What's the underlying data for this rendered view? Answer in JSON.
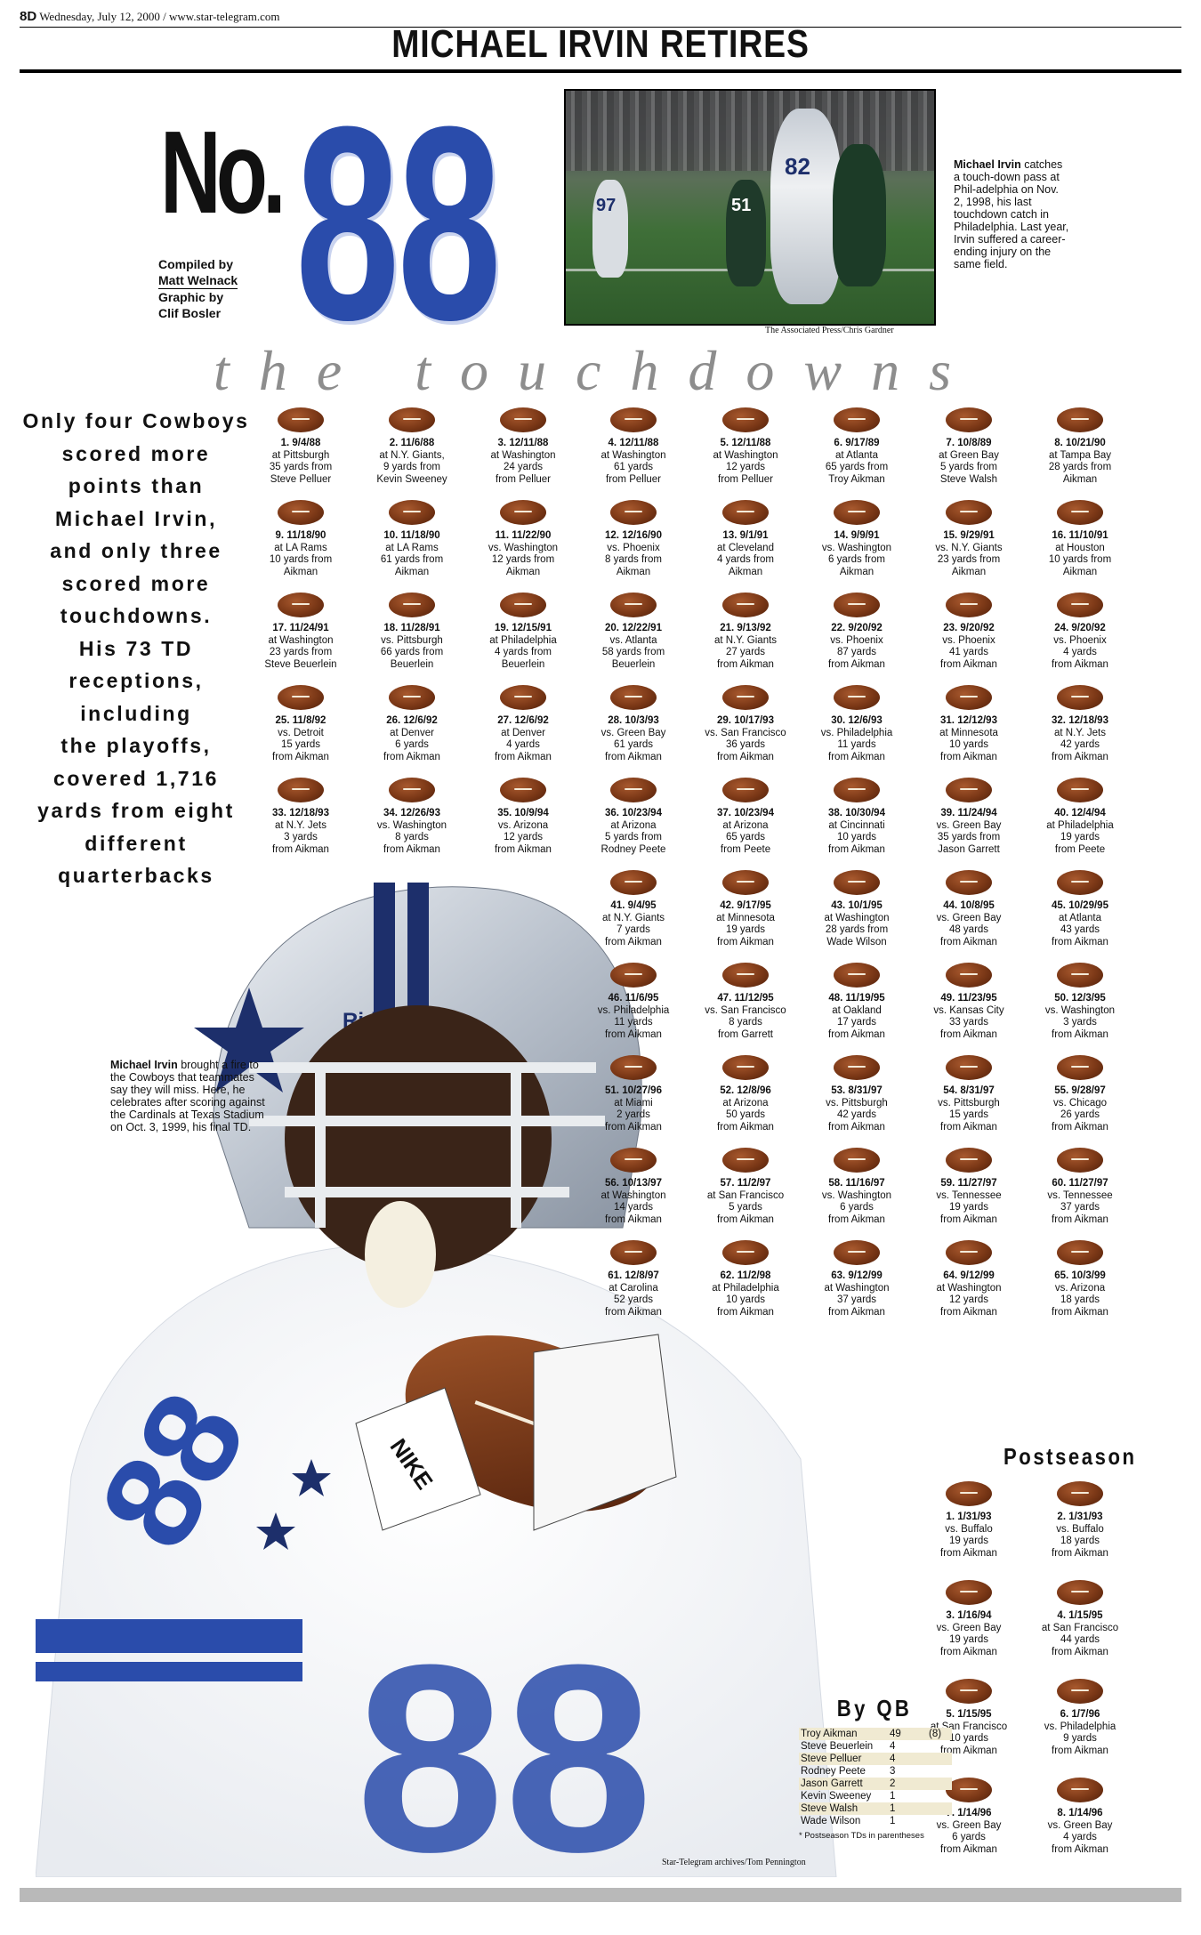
{
  "folio": {
    "page": "8D",
    "line": "Wednesday, July 12, 2000 / www.star-telegram.com"
  },
  "headline": "MICHAEL IRVIN RETIRES",
  "masthead": {
    "no": "No.",
    "number": "88"
  },
  "credits": {
    "line1": "Compiled by",
    "line2": "Matt Welnack",
    "line3": "Graphic by",
    "line4": "Clif Bosler"
  },
  "photo1": {
    "caption_name": "Michael Irvin",
    "caption_text": "catches a touch-down pass at Phil-adelphia on Nov. 2, 1998, his last touchdown catch in Philadelphia. Last year, Irvin suffered a career-ending injury on the same field.",
    "credit": "The Associated Press/Chris Gardner",
    "jerseys": [
      "97",
      "51",
      "82"
    ]
  },
  "section_title": "the touchdowns",
  "intro": [
    "Only four Cowboys",
    "scored more",
    "points than",
    "Michael Irvin,",
    "and only three",
    "scored more",
    "touchdowns.",
    "His 73 TD",
    "receptions,",
    "including",
    "the playoffs,",
    "covered 1,716",
    "yards from eight",
    "different",
    "quarterbacks"
  ],
  "touchdowns": [
    {
      "h": "1. 9/4/88",
      "l": [
        "at Pittsburgh",
        "35 yards from",
        "Steve Pelluer"
      ]
    },
    {
      "h": "2. 11/6/88",
      "l": [
        "at N.Y. Giants,",
        "9 yards from",
        "Kevin Sweeney"
      ]
    },
    {
      "h": "3. 12/11/88",
      "l": [
        "at Washington",
        "24 yards",
        "from Pelluer"
      ]
    },
    {
      "h": "4. 12/11/88",
      "l": [
        "at Washington",
        "61 yards",
        "from Pelluer"
      ]
    },
    {
      "h": "5. 12/11/88",
      "l": [
        "at Washington",
        "12 yards",
        "from Pelluer"
      ]
    },
    {
      "h": "6. 9/17/89",
      "l": [
        "at Atlanta",
        "65 yards from",
        "Troy Aikman"
      ]
    },
    {
      "h": "7. 10/8/89",
      "l": [
        "at Green Bay",
        "5 yards from",
        "Steve Walsh"
      ]
    },
    {
      "h": "8. 10/21/90",
      "l": [
        "at Tampa Bay",
        "28 yards from",
        "Aikman"
      ]
    },
    {
      "h": "9. 11/18/90",
      "l": [
        "at LA Rams",
        "10 yards from",
        "Aikman"
      ]
    },
    {
      "h": "10. 11/18/90",
      "l": [
        "at LA Rams",
        "61 yards from",
        "Aikman"
      ]
    },
    {
      "h": "11. 11/22/90",
      "l": [
        "vs. Washington",
        "12 yards from",
        "Aikman"
      ]
    },
    {
      "h": "12. 12/16/90",
      "l": [
        "vs. Phoenix",
        "8 yards from",
        "Aikman"
      ]
    },
    {
      "h": "13. 9/1/91",
      "l": [
        "at Cleveland",
        "4 yards from",
        "Aikman"
      ]
    },
    {
      "h": "14. 9/9/91",
      "l": [
        "vs. Washington",
        "6 yards from",
        "Aikman"
      ]
    },
    {
      "h": "15. 9/29/91",
      "l": [
        "vs. N.Y. Giants",
        "23 yards from",
        "Aikman"
      ]
    },
    {
      "h": "16. 11/10/91",
      "l": [
        "at Houston",
        "10 yards from",
        "Aikman"
      ]
    },
    {
      "h": "17. 11/24/91",
      "l": [
        "at Washington",
        "23 yards from",
        "Steve Beuerlein"
      ]
    },
    {
      "h": "18. 11/28/91",
      "l": [
        "vs. Pittsburgh",
        "66 yards from",
        "Beuerlein"
      ]
    },
    {
      "h": "19. 12/15/91",
      "l": [
        "at Philadelphia",
        "4 yards from",
        "Beuerlein"
      ]
    },
    {
      "h": "20. 12/22/91",
      "l": [
        "vs. Atlanta",
        "58 yards from",
        "Beuerlein"
      ]
    },
    {
      "h": "21. 9/13/92",
      "l": [
        "at N.Y. Giants",
        "27 yards",
        "from Aikman"
      ]
    },
    {
      "h": "22. 9/20/92",
      "l": [
        "vs. Phoenix",
        "87 yards",
        "from Aikman"
      ]
    },
    {
      "h": "23. 9/20/92",
      "l": [
        "vs. Phoenix",
        "41 yards",
        "from Aikman"
      ]
    },
    {
      "h": "24. 9/20/92",
      "l": [
        "vs. Phoenix",
        "4 yards",
        "from Aikman"
      ]
    },
    {
      "h": "25. 11/8/92",
      "l": [
        "vs. Detroit",
        "15 yards",
        "from Aikman"
      ]
    },
    {
      "h": "26. 12/6/92",
      "l": [
        "at Denver",
        "6 yards",
        "from Aikman"
      ]
    },
    {
      "h": "27. 12/6/92",
      "l": [
        "at Denver",
        "4 yards",
        "from Aikman"
      ]
    },
    {
      "h": "28. 10/3/93",
      "l": [
        "vs. Green Bay",
        "61 yards",
        "from Aikman"
      ]
    },
    {
      "h": "29. 10/17/93",
      "l": [
        "vs. San Francisco",
        "36 yards",
        "from Aikman"
      ]
    },
    {
      "h": "30. 12/6/93",
      "l": [
        "vs. Philadelphia",
        "11 yards",
        "from Aikman"
      ]
    },
    {
      "h": "31. 12/12/93",
      "l": [
        "at Minnesota",
        "10 yards",
        "from Aikman"
      ]
    },
    {
      "h": "32. 12/18/93",
      "l": [
        "at N.Y. Jets",
        "42 yards",
        "from Aikman"
      ]
    },
    {
      "h": "33. 12/18/93",
      "l": [
        "at N.Y. Jets",
        "3 yards",
        "from Aikman"
      ]
    },
    {
      "h": "34. 12/26/93",
      "l": [
        "vs. Washington",
        "8 yards",
        "from Aikman"
      ]
    },
    {
      "h": "35. 10/9/94",
      "l": [
        "vs. Arizona",
        "12 yards",
        "from Aikman"
      ]
    },
    {
      "h": "36. 10/23/94",
      "l": [
        "at Arizona",
        "5 yards from",
        "Rodney Peete"
      ]
    },
    {
      "h": "37. 10/23/94",
      "l": [
        "at Arizona",
        "65 yards",
        "from Peete"
      ]
    },
    {
      "h": "38. 10/30/94",
      "l": [
        "at Cincinnati",
        "10 yards",
        "from Aikman"
      ]
    },
    {
      "h": "39. 11/24/94",
      "l": [
        "vs. Green Bay",
        "35 yards from",
        "Jason Garrett"
      ]
    },
    {
      "h": "40. 12/4/94",
      "l": [
        "at Philadelphia",
        "19 yards",
        "from Peete"
      ]
    },
    {
      "h": "41. 9/4/95",
      "l": [
        "at N.Y. Giants",
        "7 yards",
        "from Aikman"
      ]
    },
    {
      "h": "42. 9/17/95",
      "l": [
        "at Minnesota",
        "19 yards",
        "from Aikman"
      ]
    },
    {
      "h": "43. 10/1/95",
      "l": [
        "at Washington",
        "28 yards from",
        "Wade Wilson"
      ]
    },
    {
      "h": "44. 10/8/95",
      "l": [
        "vs. Green Bay",
        "48 yards",
        "from Aikman"
      ]
    },
    {
      "h": "45. 10/29/95",
      "l": [
        "at Atlanta",
        "43 yards",
        "from Aikman"
      ]
    },
    {
      "h": "46. 11/6/95",
      "l": [
        "vs. Philadelphia",
        "11 yards",
        "from Aikman"
      ]
    },
    {
      "h": "47. 11/12/95",
      "l": [
        "vs. San Francisco",
        "8 yards",
        "from Garrett"
      ]
    },
    {
      "h": "48. 11/19/95",
      "l": [
        "at Oakland",
        "17 yards",
        "from Aikman"
      ]
    },
    {
      "h": "49. 11/23/95",
      "l": [
        "vs. Kansas City",
        "33 yards",
        "from Aikman"
      ]
    },
    {
      "h": "50. 12/3/95",
      "l": [
        "vs. Washington",
        "3 yards",
        "from Aikman"
      ]
    },
    {
      "h": "51. 10/27/96",
      "l": [
        "at Miami",
        "2 yards",
        "from Aikman"
      ]
    },
    {
      "h": "52. 12/8/96",
      "l": [
        "at Arizona",
        "50 yards",
        "from Aikman"
      ]
    },
    {
      "h": "53. 8/31/97",
      "l": [
        "vs. Pittsburgh",
        "42 yards",
        "from Aikman"
      ]
    },
    {
      "h": "54. 8/31/97",
      "l": [
        "vs. Pittsburgh",
        "15 yards",
        "from Aikman"
      ]
    },
    {
      "h": "55. 9/28/97",
      "l": [
        "vs. Chicago",
        "26 yards",
        "from Aikman"
      ]
    },
    {
      "h": "56. 10/13/97",
      "l": [
        "at Washington",
        "14 yards",
        "from Aikman"
      ]
    },
    {
      "h": "57. 11/2/97",
      "l": [
        "at San Francisco",
        "5 yards",
        "from Aikman"
      ]
    },
    {
      "h": "58. 11/16/97",
      "l": [
        "vs. Washington",
        "6 yards",
        "from Aikman"
      ]
    },
    {
      "h": "59. 11/27/97",
      "l": [
        "vs. Tennessee",
        "19 yards",
        "from Aikman"
      ]
    },
    {
      "h": "60. 11/27/97",
      "l": [
        "vs. Tennessee",
        "37 yards",
        "from Aikman"
      ]
    },
    {
      "h": "61. 12/8/97",
      "l": [
        "at Carolina",
        "52 yards",
        "from Aikman"
      ]
    },
    {
      "h": "62. 11/2/98",
      "l": [
        "at Philadelphia",
        "10 yards",
        "from Aikman"
      ]
    },
    {
      "h": "63. 9/12/99",
      "l": [
        "at Washington",
        "37 yards",
        "from Aikman"
      ]
    },
    {
      "h": "64. 9/12/99",
      "l": [
        "at Washington",
        "12 yards",
        "from Aikman"
      ]
    },
    {
      "h": "65. 10/3/99",
      "l": [
        "vs. Arizona",
        "18 yards",
        "from Aikman"
      ]
    }
  ],
  "postseason_title": "Postseason",
  "postseason": [
    {
      "h": "1. 1/31/93",
      "l": [
        "vs. Buffalo",
        "19 yards",
        "from Aikman"
      ]
    },
    {
      "h": "2. 1/31/93",
      "l": [
        "vs. Buffalo",
        "18 yards",
        "from Aikman"
      ]
    },
    {
      "h": "3. 1/16/94",
      "l": [
        "vs. Green Bay",
        "19 yards",
        "from Aikman"
      ]
    },
    {
      "h": "4. 1/15/95",
      "l": [
        "at San Francisco",
        "44 yards",
        "from Aikman"
      ]
    },
    {
      "h": "5. 1/15/95",
      "l": [
        "at San Francisco",
        "10 yards",
        "from Aikman"
      ]
    },
    {
      "h": "6. 1/7/96",
      "l": [
        "vs. Philadelphia",
        "9 yards",
        "from Aikman"
      ]
    },
    {
      "h": "7. 1/14/96",
      "l": [
        "vs. Green Bay",
        "6 yards",
        "from Aikman"
      ]
    },
    {
      "h": "8. 1/14/96",
      "l": [
        "vs. Green Bay",
        "4 yards",
        "from Aikman"
      ]
    }
  ],
  "by_qb": {
    "title": "By QB",
    "rows": [
      {
        "name": "Troy Aikman",
        "n": "49",
        "p": "(8)"
      },
      {
        "name": "Steve Beuerlein",
        "n": "4",
        "p": ""
      },
      {
        "name": "Steve Pelluer",
        "n": "4",
        "p": ""
      },
      {
        "name": "Rodney Peete",
        "n": "3",
        "p": ""
      },
      {
        "name": "Jason Garrett",
        "n": "2",
        "p": ""
      },
      {
        "name": "Kevin Sweeney",
        "n": "1",
        "p": ""
      },
      {
        "name": "Steve Walsh",
        "n": "1",
        "p": ""
      },
      {
        "name": "Wade Wilson",
        "n": "1",
        "p": ""
      }
    ],
    "footnote": "* Postseason TDs in parentheses"
  },
  "photo2": {
    "caption_name": "Michael Irvin",
    "caption_text": "brought a fire to the Cowboys that teammates say they will miss. Here, he celebrates after scoring against the Cardinals at Texas Stadium on Oct. 3, 1999, his final TD.",
    "credit": "Star-Telegram archives/Tom Pennington",
    "helmet_brand": "Riddell",
    "jersey_number": "88",
    "glove_brand": "NIKE"
  },
  "colors": {
    "cowboys_blue": "#2a4cab",
    "football": "#7a3716",
    "title_gray": "#8d8d8d"
  }
}
